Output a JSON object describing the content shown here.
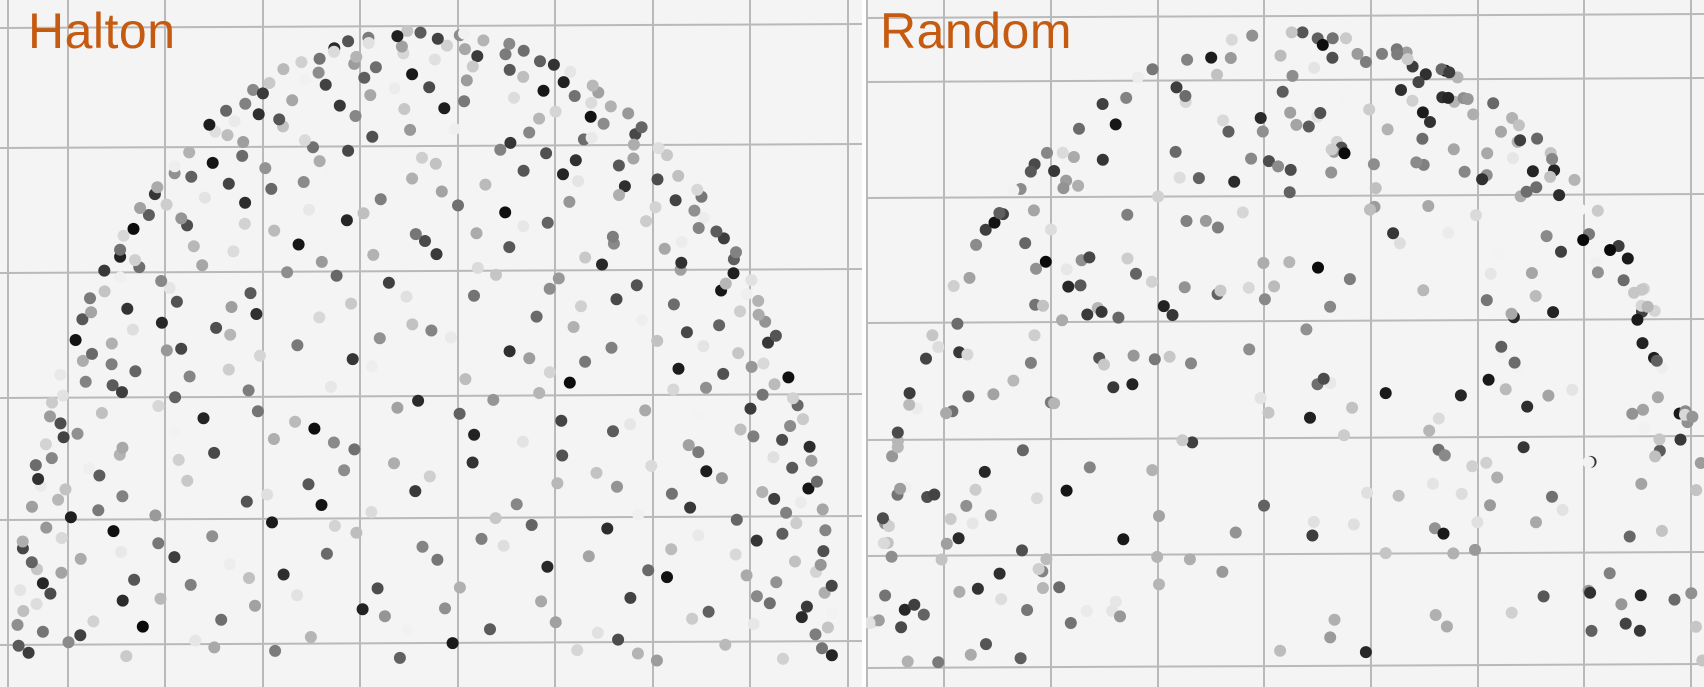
{
  "colors": {
    "background": "#f4f4f4",
    "grid": "#b9b9b9",
    "title": "#c55a11"
  },
  "panels": [
    {
      "title": "Halton",
      "sampling": "halton",
      "point_count": 460
    },
    {
      "title": "Random",
      "sampling": "random",
      "point_count": 400
    }
  ]
}
